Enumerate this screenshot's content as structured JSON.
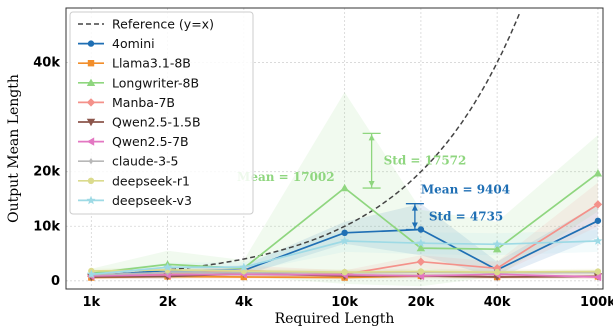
{
  "chart_data": {
    "type": "line",
    "xlabel": "Required Length",
    "ylabel": "Output Mean Length",
    "categories": [
      "1k",
      "2k",
      "4k",
      "10k",
      "20k",
      "40k",
      "100k"
    ],
    "x_values": [
      1000,
      2000,
      4000,
      10000,
      20000,
      40000,
      100000
    ],
    "x_scale": "log",
    "ylim": [
      -1500,
      50000
    ],
    "y_ticks": [
      0,
      10000,
      20000,
      40000
    ],
    "y_tick_labels": [
      "0",
      "10k",
      "20k",
      "40k"
    ],
    "grid": true,
    "legend_position": "top-left",
    "reference": {
      "name": "Reference (y=x)",
      "color": "#444444"
    },
    "series": [
      {
        "name": "4omini",
        "color": "#1f6fb4",
        "marker": "circle",
        "values": [
          900,
          1900,
          1900,
          8800,
          9404,
          2000,
          11000
        ],
        "std": [
          300,
          600,
          900,
          2000,
          4735,
          1500,
          3000
        ]
      },
      {
        "name": "Llama3.1-8B",
        "color": "#f28e2b",
        "marker": "square",
        "values": [
          600,
          800,
          700,
          600,
          900,
          700,
          800
        ],
        "std": [
          300,
          400,
          300,
          300,
          400,
          300,
          400
        ]
      },
      {
        "name": "Longwriter-8B",
        "color": "#8fd67f",
        "marker": "triangle-up",
        "values": [
          1400,
          3000,
          2300,
          17002,
          6000,
          5800,
          19700
        ],
        "std": [
          800,
          2500,
          1500,
          17572,
          7000,
          5000,
          7000
        ]
      },
      {
        "name": "Manba-7B",
        "color": "#f4918a",
        "marker": "diamond",
        "values": [
          800,
          1200,
          1900,
          1200,
          3500,
          2300,
          14000
        ],
        "std": [
          400,
          600,
          900,
          700,
          1200,
          1200,
          4000
        ]
      },
      {
        "name": "Qwen2.5-1.5B",
        "color": "#8c564b",
        "marker": "triangle-down",
        "values": [
          700,
          800,
          1300,
          900,
          900,
          700,
          800
        ],
        "std": [
          300,
          400,
          500,
          400,
          400,
          300,
          300
        ]
      },
      {
        "name": "Qwen2.5-7B",
        "color": "#e377c2",
        "marker": "triangle-left",
        "values": [
          900,
          1100,
          1200,
          1100,
          900,
          1200,
          700
        ],
        "std": [
          300,
          500,
          500,
          500,
          400,
          500,
          300
        ]
      },
      {
        "name": "claude-3-5",
        "color": "#b8b8b8",
        "marker": "diamond-small",
        "values": [
          1100,
          1500,
          1500,
          1500,
          1600,
          1500,
          1500
        ],
        "std": [
          300,
          500,
          500,
          500,
          500,
          500,
          500
        ]
      },
      {
        "name": "deepseek-r1",
        "color": "#dbdb8d",
        "marker": "circle",
        "values": [
          1800,
          2000,
          1800,
          1600,
          1700,
          1600,
          1700
        ],
        "std": [
          400,
          500,
          500,
          500,
          500,
          500,
          500
        ]
      },
      {
        "name": "deepseek-v3",
        "color": "#9edae5",
        "marker": "star",
        "values": [
          1200,
          2500,
          2500,
          7300,
          6900,
          6700,
          7300
        ],
        "std": [
          400,
          800,
          900,
          2000,
          2000,
          2000,
          2000
        ]
      }
    ],
    "annotations": {
      "longwriter_mean": {
        "text": "Mean = 17002",
        "color": "#8fd67f"
      },
      "longwriter_std": {
        "text": "Std = 17572",
        "color": "#8fd67f"
      },
      "omini_mean": {
        "text": "Mean = 9404",
        "color": "#1f6fb4"
      },
      "omini_std": {
        "text": "Std = 4735",
        "color": "#1f6fb4"
      }
    }
  }
}
